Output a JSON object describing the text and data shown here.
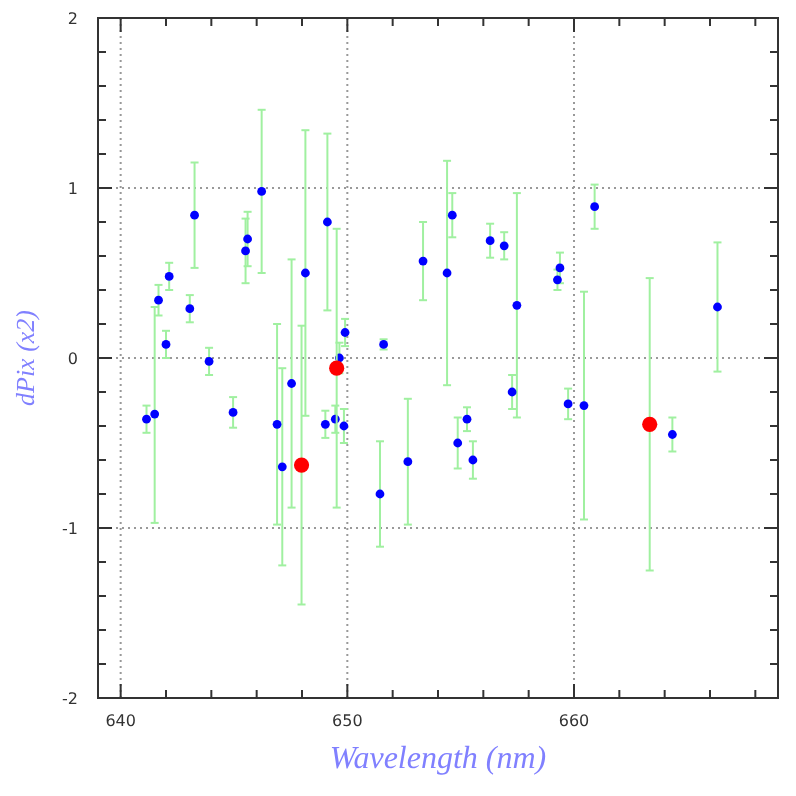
{
  "chart_data": {
    "type": "scatter",
    "xlabel": "Wavelength (nm)",
    "ylabel": "dPix (x2)",
    "xlim": [
      639,
      669
    ],
    "ylim": [
      -2,
      2
    ],
    "xticks": [
      640,
      {
        "value": 642,
        "label": null
      },
      {
        "value": 644,
        "label": null
      },
      {
        "value": 646,
        "label": null
      },
      {
        "value": 648,
        "label": null
      },
      650,
      {
        "value": 652,
        "label": null
      },
      {
        "value": 654,
        "label": null
      },
      {
        "value": 656,
        "label": null
      },
      {
        "value": 658,
        "label": null
      },
      660,
      {
        "value": 662,
        "label": null
      },
      {
        "value": 664,
        "label": null
      },
      {
        "value": 666,
        "label": null
      },
      {
        "value": 668,
        "label": null
      }
    ],
    "yticks": [
      -2,
      {
        "value": -1.8,
        "label": null
      },
      {
        "value": -1.6,
        "label": null
      },
      {
        "value": -1.4,
        "label": null
      },
      {
        "value": -1.2,
        "label": null
      },
      -1,
      {
        "value": -0.8,
        "label": null
      },
      {
        "value": -0.6,
        "label": null
      },
      {
        "value": -0.4,
        "label": null
      },
      {
        "value": -0.2,
        "label": null
      },
      0,
      {
        "value": 0.2,
        "label": null
      },
      {
        "value": 0.4,
        "label": null
      },
      {
        "value": 0.6,
        "label": null
      },
      {
        "value": 0.8,
        "label": null
      },
      1,
      {
        "value": 1.2,
        "label": null
      },
      {
        "value": 1.4,
        "label": null
      },
      {
        "value": 1.6,
        "label": null
      },
      {
        "value": 1.8,
        "label": null
      },
      2
    ],
    "grid": true,
    "marker": "circle",
    "series": [
      {
        "color": "#0000ff",
        "x": [
          641.14,
          641.5,
          641.67,
          642.0,
          642.14,
          643.05,
          643.26,
          643.9,
          644.96,
          645.51,
          645.6,
          646.22,
          646.9,
          647.13,
          647.54,
          648.15,
          649.12,
          649.03,
          649.47,
          649.65,
          649.85,
          649.9,
          651.6,
          651.44,
          652.67,
          653.34,
          654.4,
          654.63,
          654.87,
          655.28,
          655.54,
          656.3,
          656.92,
          657.27,
          657.48,
          659.27,
          659.38,
          659.74,
          660.44,
          660.91,
          664.34,
          666.33
        ],
        "values": [
          -0.36,
          -0.33,
          0.34,
          0.08,
          0.48,
          0.29,
          0.84,
          -0.02,
          -0.32,
          0.63,
          0.7,
          0.98,
          -0.39,
          -0.64,
          -0.15,
          0.5,
          0.8,
          -0.39,
          -0.36,
          0.0,
          -0.4,
          0.15,
          0.08,
          -0.8,
          -0.61,
          0.57,
          0.5,
          0.84,
          -0.5,
          -0.36,
          -0.6,
          0.69,
          0.66,
          -0.2,
          0.31,
          0.46,
          0.53,
          -0.27,
          -0.28,
          0.89,
          -0.45,
          0.3
        ],
        "errors": [
          0.08,
          [
            -0.97,
            0.3
          ],
          0.09,
          0.08,
          0.08,
          0.08,
          0.31,
          0.08,
          0.09,
          0.19,
          0.16,
          0.48,
          0.59,
          0.58,
          0.73,
          0.84,
          0.52,
          0.08,
          0.08,
          0.09,
          0.1,
          0.08,
          0.03,
          0.31,
          0.37,
          0.23,
          0.66,
          0.13,
          0.15,
          0.07,
          0.11,
          0.1,
          0.08,
          0.1,
          0.66,
          0.06,
          0.09,
          0.09,
          0.67,
          0.13,
          0.1,
          0.38
        ]
      },
      {
        "color": "#ff0000",
        "x": [
          647.98,
          649.53,
          663.34
        ],
        "values": [
          -0.63,
          -0.06,
          -0.39
        ],
        "errors": [
          0.82,
          0.82,
          0.86
        ]
      }
    ]
  }
}
